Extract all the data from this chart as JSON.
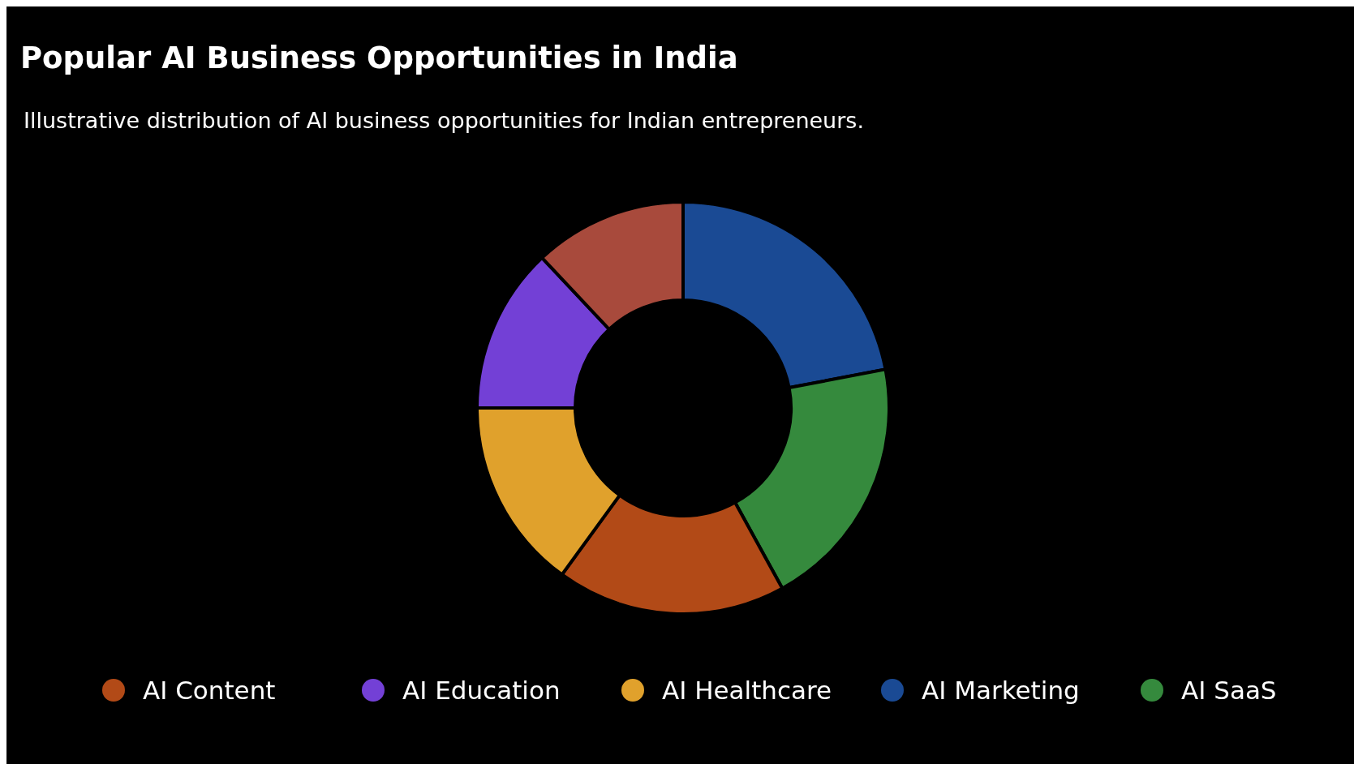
{
  "chart_data": {
    "type": "donut",
    "title": "Popular AI Business Opportunities in India",
    "subtitle": "Illustrative distribution of AI business opportunities for Indian entrepreneurs.",
    "categories": [
      "AI Marketing",
      "AI SaaS",
      "AI Content",
      "AI Healthcare",
      "AI Education",
      null
    ],
    "values": [
      22,
      20,
      18,
      15,
      13,
      12
    ],
    "colors": [
      "#1a4a94",
      "#358a3d",
      "#b24a17",
      "#e0a12c",
      "#7340d6",
      "#a84a3c"
    ],
    "legend": "bottom"
  }
}
